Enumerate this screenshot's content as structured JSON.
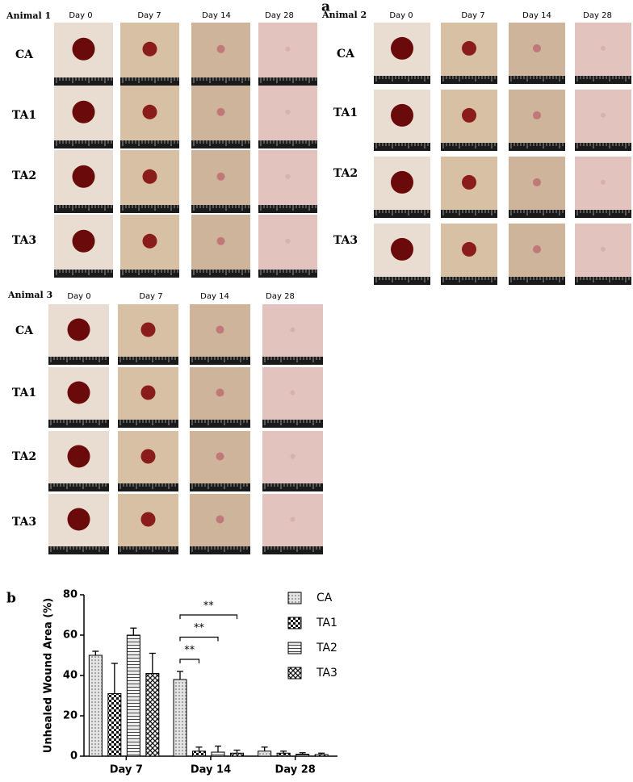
{
  "panel_a": {
    "label": "a",
    "animals": [
      {
        "label": "Animal 1",
        "days": [
          "Day 0",
          "Day 7",
          "Day 14",
          "Day 28"
        ],
        "rows": [
          "CA",
          "TA1",
          "TA2",
          "TA3"
        ]
      },
      {
        "label": "Animal 2",
        "days": [
          "Day 0",
          "Day 7",
          "Day 14",
          "Day 28"
        ],
        "rows": [
          "CA",
          "TA1",
          "TA2",
          "TA3"
        ]
      },
      {
        "label": "Animal 3",
        "days": [
          "Day 0",
          "Day 7",
          "Day 14",
          "Day 28"
        ],
        "rows": [
          "CA",
          "TA1",
          "TA2",
          "TA3"
        ]
      }
    ]
  },
  "chart_data": {
    "type": "bar",
    "panel_label": "b",
    "y_label": "Unhealed Wound Area (%)",
    "categories": [
      "Day 7",
      "Day 14",
      "Day 28"
    ],
    "series": [
      {
        "name": "CA",
        "color": "#d9d9d9",
        "pattern": "dots",
        "values": [
          50,
          38,
          2.5
        ],
        "errors": [
          2,
          4,
          2
        ]
      },
      {
        "name": "TA1",
        "color": "#ffffff",
        "pattern": "checker",
        "values": [
          31,
          2.5,
          1.5
        ],
        "errors": [
          15,
          2,
          1
        ]
      },
      {
        "name": "TA2",
        "color": "#e8e8e8",
        "pattern": "stripes",
        "values": [
          60,
          2,
          1
        ],
        "errors": [
          3.5,
          3,
          0.7
        ]
      },
      {
        "name": "TA3",
        "color": "#ffffff",
        "pattern": "crosshatch",
        "values": [
          41,
          1.5,
          0.8
        ],
        "errors": [
          10,
          1.5,
          0.7
        ]
      }
    ],
    "ylim": [
      0,
      80
    ],
    "yticks": [
      0,
      20,
      40,
      60,
      80
    ],
    "annotations": [
      "**",
      "**",
      "**"
    ]
  }
}
